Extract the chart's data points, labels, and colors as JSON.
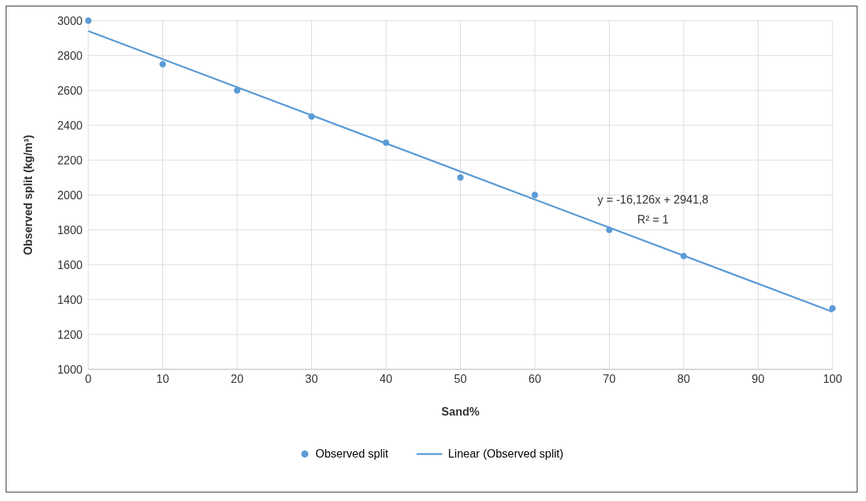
{
  "chart_data": {
    "type": "scatter",
    "xlabel": "Sand%",
    "ylabel": "Observed split (kg/m³)",
    "x": [
      0,
      10,
      20,
      30,
      40,
      50,
      60,
      70,
      80,
      100
    ],
    "series": [
      {
        "name": "Observed split",
        "color": "#5b9bd5",
        "marker": "circle",
        "values": [
          3000,
          2750,
          2600,
          2450,
          2300,
          2100,
          2000,
          1800,
          1650,
          1350
        ]
      },
      {
        "name": "Linear (Observed split)",
        "type": "line",
        "color": "#5b9bd5",
        "marker": "none",
        "line_style": "solid",
        "x": [
          0,
          100
        ],
        "values": [
          2940,
          1330
        ]
      }
    ],
    "xlim": [
      0,
      100
    ],
    "xticks": [
      0,
      10,
      20,
      30,
      40,
      50,
      60,
      70,
      80,
      90,
      100
    ],
    "ylim": [
      1000,
      3000
    ],
    "yticks": [
      1000,
      1200,
      1400,
      1600,
      1800,
      2000,
      2200,
      2400,
      2600,
      2800,
      3000
    ],
    "grid": true,
    "legend": "bottom",
    "annotations": [
      "y = -16,126x + 2941,8",
      "R² = 1"
    ]
  }
}
